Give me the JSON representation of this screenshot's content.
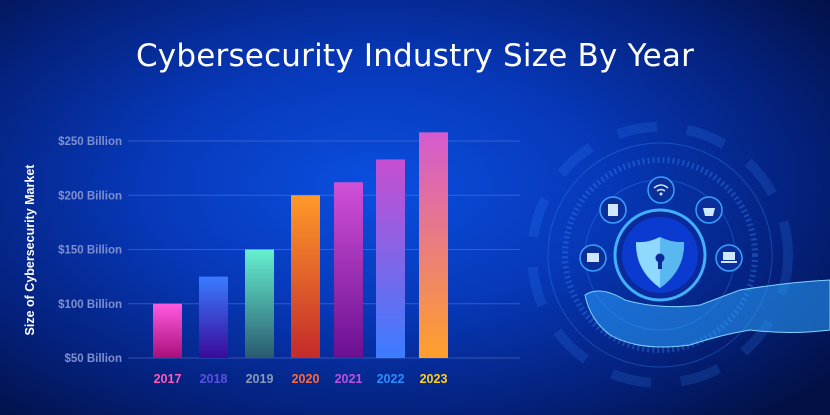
{
  "chart_data": {
    "type": "bar",
    "title": "Cybersecurity Industry Size By Year",
    "xlabel": "",
    "ylabel": "Size of Cybersecurity Market",
    "categories": [
      "2017",
      "2018",
      "2019",
      "2020",
      "2021",
      "2022",
      "2023"
    ],
    "values": [
      100,
      125,
      150,
      200,
      212,
      233,
      258
    ],
    "unit": "Billion USD",
    "ylim": [
      50,
      250
    ],
    "yticks": [
      50,
      100,
      150,
      200,
      250
    ],
    "ytick_labels": [
      "$50 Billion",
      "$100 Billion",
      "$150 Billion",
      "$200 Billion",
      "$250 Billion"
    ],
    "grid": true,
    "legend": "none",
    "bar_gradients": [
      [
        "#ff5ae0",
        "#a8107a"
      ],
      [
        "#3a7cff",
        "#3a0a9a"
      ],
      [
        "#66f0d0",
        "#2a5a70"
      ],
      [
        "#ff9a2a",
        "#c42a2a"
      ],
      [
        "#d050d8",
        "#6a1090"
      ],
      [
        "#c84ed0",
        "#3a7cff"
      ],
      [
        "#d45ad0",
        "#ffa02a"
      ]
    ],
    "label_colors": [
      "#ff5ab8",
      "#5a50e0",
      "#8a9ab8",
      "#ff6a3a",
      "#c050e0",
      "#2a8cff",
      "#ffd21a"
    ]
  },
  "illustration": {
    "icons": [
      "shield-lock-icon",
      "wifi-icon",
      "book-icon",
      "basket-icon",
      "card-icon",
      "laptop-icon",
      "hand-icon"
    ]
  }
}
